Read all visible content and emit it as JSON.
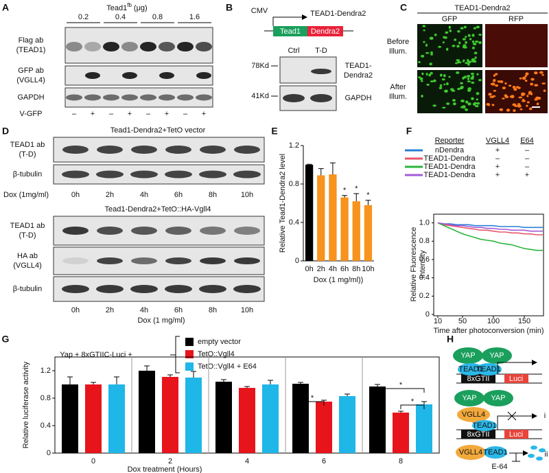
{
  "panels": {
    "A": {
      "label": "A",
      "title": {
        "gene": "Tead1",
        "superscript": "fb",
        "unit": "(μg)"
      },
      "doses": [
        "0.2",
        "0.4",
        "0.8",
        "1.6"
      ],
      "rows": [
        [
          "Flag ab",
          "(TEAD1)"
        ],
        [
          "GFP ab",
          "(VGLL4)"
        ],
        [
          "GAPDH"
        ]
      ],
      "v_gfp_label": "V-GFP",
      "v_gfp": [
        "–",
        "+",
        "–",
        "+",
        "–",
        "+",
        "–",
        "+"
      ]
    },
    "B": {
      "label": "B",
      "promoter": "CMV",
      "construct": "TEAD1-Dendra2",
      "segments": [
        "Tead1",
        "Dendra2"
      ],
      "lanes": [
        "Ctrl",
        "T-D"
      ],
      "markers": [
        "78Kd",
        "41Kd"
      ],
      "rows": [
        [
          "TEAD1-",
          "Dendra2"
        ],
        [
          "GAPDH"
        ]
      ]
    },
    "C": {
      "label": "C",
      "title": "TEAD1-Dendra2",
      "columns": [
        "GFP",
        "RFP"
      ],
      "rows": [
        [
          "Before",
          "Illum."
        ],
        [
          "After",
          "Illum."
        ]
      ]
    },
    "D": {
      "label": "D",
      "blots": [
        {
          "title": "Tead1-Dendra2+TetO vector",
          "rows": [
            [
              "TEAD1 ab",
              "(T-D)"
            ],
            [
              "β-tubulin"
            ]
          ],
          "lanes": [
            "0h",
            "2h",
            "4h",
            "6h",
            "8h",
            "10h"
          ],
          "treatment": "Dox (1mg/ml)"
        },
        {
          "title": "Tead1-Dendra2+TetO::HA-Vgll4",
          "rows": [
            [
              "TEAD1 ab",
              "(T-D)"
            ],
            [
              "HA ab",
              "(VGLL4)"
            ],
            [
              "β-tubulin"
            ]
          ],
          "lanes": [
            "0h",
            "2h",
            "4h",
            "6h",
            "8h",
            "10h"
          ],
          "treatment": "Dox (1 mg/ml)"
        }
      ]
    },
    "H": {
      "label": "H",
      "activation": [
        "YAP",
        "YAP",
        "TEAD1",
        "TEAD1",
        "8xGTII",
        "Luci"
      ],
      "repression": [
        "YAP",
        "YAP",
        "VGLL4",
        "TEAD1",
        "8xGTII",
        "Luci",
        "i"
      ],
      "degradation": [
        "VGLL4",
        "TEAD1",
        "ii",
        "E-64"
      ]
    }
  },
  "chart_data": [
    {
      "type": "bar",
      "panel_label": "E",
      "categories": [
        "0h",
        "2h",
        "4h",
        "6h",
        "8h",
        "10h"
      ],
      "values": [
        1.0,
        0.89,
        0.9,
        0.66,
        0.62,
        0.58
      ],
      "errors": [
        0.005,
        0.07,
        0.12,
        0.02,
        0.08,
        0.05
      ],
      "colors": [
        "#000000",
        "#f7931e",
        "#f7931e",
        "#f7931e",
        "#f7931e",
        "#f7931e"
      ],
      "annotations": [
        null,
        null,
        null,
        "*",
        "*",
        "*"
      ],
      "ylim": [
        0,
        1.2
      ],
      "yticks": [
        0,
        0.4,
        0.8,
        1.2
      ],
      "ylabel": "Relative Tead1-Dendra2 level",
      "xlabel": "Dox (1 mg/ml))"
    },
    {
      "type": "line",
      "panel_label": "F",
      "legend_headers": [
        "Reporter",
        "VGLL4",
        "E64"
      ],
      "x": [
        10,
        20,
        30,
        40,
        50,
        60,
        70,
        80,
        90,
        100,
        110,
        120,
        130,
        140,
        150,
        160,
        170,
        180
      ],
      "series": [
        {
          "name": "nDendra",
          "vgll4": "+",
          "e64": "–",
          "color": "#2a7fd4",
          "values": [
            1.0,
            0.99,
            0.99,
            0.98,
            0.98,
            0.98,
            0.97,
            0.97,
            0.97,
            0.97,
            0.96,
            0.96,
            0.96,
            0.96,
            0.95,
            0.95,
            0.95,
            0.95
          ]
        },
        {
          "name": "TEAD1-Dendra",
          "vgll4": "–",
          "e64": "–",
          "color": "#e8566a",
          "values": [
            1.0,
            0.98,
            0.97,
            0.96,
            0.95,
            0.94,
            0.93,
            0.92,
            0.92,
            0.91,
            0.9,
            0.9,
            0.89,
            0.89,
            0.88,
            0.88,
            0.87,
            0.87
          ]
        },
        {
          "name": "TEAD1-Dendra",
          "vgll4": "+",
          "e64": "–",
          "color": "#2bb53a",
          "values": [
            1.0,
            0.97,
            0.94,
            0.91,
            0.88,
            0.86,
            0.84,
            0.82,
            0.81,
            0.8,
            0.78,
            0.77,
            0.76,
            0.74,
            0.72,
            0.71,
            0.7,
            0.7
          ]
        },
        {
          "name": "TEAD1-Dendra",
          "vgll4": "+",
          "e64": "+",
          "color": "#a25ad6",
          "values": [
            1.0,
            0.99,
            0.98,
            0.97,
            0.97,
            0.96,
            0.95,
            0.95,
            0.94,
            0.94,
            0.93,
            0.93,
            0.92,
            0.92,
            0.92,
            0.91,
            0.91,
            0.91
          ]
        }
      ],
      "xlim": [
        10,
        180
      ],
      "xticks": [
        10,
        50,
        100,
        150
      ],
      "ylim": [
        0,
        1.05
      ],
      "yticks": [
        0,
        0.2,
        0.4,
        0.6,
        0.8,
        {
          "value": 1,
          "label": "1.0"
        }
      ],
      "ylabel": [
        "Relative Fluorescence",
        "Intensity"
      ],
      "xlabel": "Time after photoconversion (min)"
    },
    {
      "type": "grouped-bar",
      "panel_label": "G",
      "intro": "Yap + 8xGTIIC-Luci +",
      "categories": [
        "0",
        "2",
        "4",
        "6",
        "8"
      ],
      "series": [
        {
          "name": "empty vector",
          "color": "#000000",
          "values": [
            1.0,
            1.2,
            1.04,
            1.01,
            0.97
          ],
          "errors": [
            0.11,
            0.07,
            0.03,
            0.02,
            0.03
          ]
        },
        {
          "name": "TetO::Vgll4",
          "color": "#e8141c",
          "values": [
            1.0,
            1.11,
            0.95,
            0.75,
            0.59
          ],
          "errors": [
            0.03,
            0.03,
            0.02,
            0.02,
            0.02
          ]
        },
        {
          "name": "TetO::Vgll4 + E64",
          "color": "#1fb6e8",
          "values": [
            1.0,
            1.1,
            1.0,
            0.83,
            0.71
          ],
          "errors": [
            0.11,
            0.09,
            0.06,
            0.03,
            0.04
          ]
        }
      ],
      "significance": [
        "*",
        "*",
        "*"
      ],
      "ylim": [
        0,
        1.4
      ],
      "yticks": [
        0,
        0.4,
        0.8,
        1.2
      ],
      "ylabel": "Relative luciferase activity",
      "xlabel": "Dox treatment (Hours)"
    }
  ]
}
